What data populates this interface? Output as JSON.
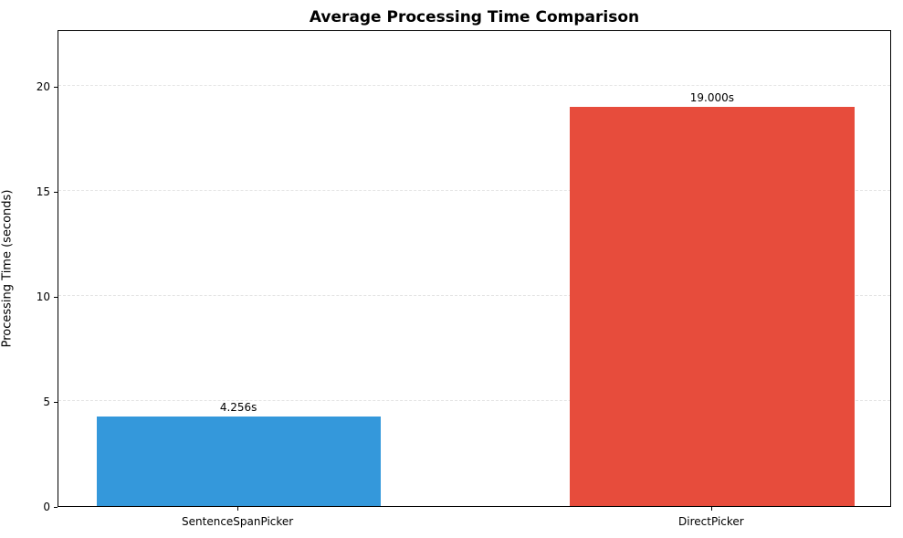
{
  "chart_data": {
    "type": "bar",
    "title": "Average Processing Time Comparison",
    "xlabel": "",
    "ylabel": "Processing Time (seconds)",
    "categories": [
      "SentenceSpanPicker",
      "DirectPicker"
    ],
    "values": [
      4.256,
      19.0
    ],
    "value_labels": [
      "4.256s",
      "19.000s"
    ],
    "bar_colors": [
      "#3498db",
      "#e74c3c"
    ],
    "yticks": [
      0,
      5,
      10,
      15,
      20
    ],
    "ylim": [
      0,
      22.7
    ],
    "xlim": [
      -0.38,
      1.38
    ],
    "bar_width": 0.6,
    "grid": "horizontal-dashed",
    "grid_color": "#e4e4e4",
    "legend": "none",
    "background": "#ffffff",
    "spine_color": "#000000"
  }
}
